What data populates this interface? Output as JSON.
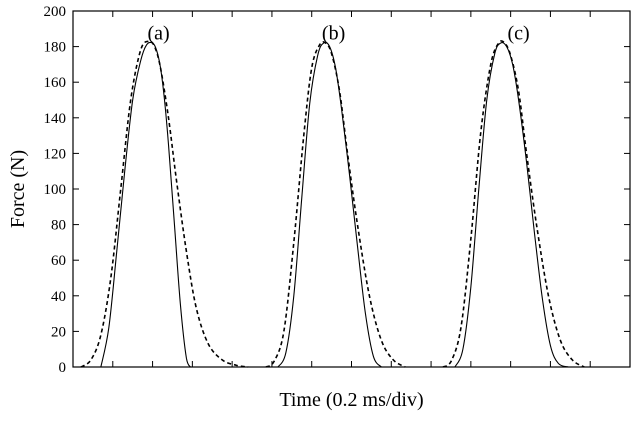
{
  "chart_data": {
    "type": "line",
    "title": "",
    "xlabel": "Time (0.2 ms/div)",
    "ylabel": "Force (N)",
    "ylim": [
      0,
      200
    ],
    "yticks": [
      0,
      20,
      40,
      60,
      80,
      100,
      120,
      140,
      160,
      180,
      200
    ],
    "xlim": [
      0,
      14
    ],
    "x_divisions": 14,
    "x_tick_labels": false,
    "grid": false,
    "legend": "none",
    "panel_labels": [
      {
        "text": "(a)",
        "x": 2.15,
        "y": 188
      },
      {
        "text": "(b)",
        "x": 6.55,
        "y": 188
      },
      {
        "text": "(c)",
        "x": 11.2,
        "y": 188
      }
    ],
    "series": [
      {
        "style": "solid",
        "x": [
          0.7,
          0.9,
          1.1,
          1.3,
          1.5,
          1.7,
          1.85,
          2.0,
          2.1,
          2.2,
          2.3,
          2.4,
          2.55,
          2.7,
          2.85,
          2.95
        ],
        "y": [
          0,
          22,
          65,
          110,
          150,
          172,
          181,
          182,
          178,
          168,
          150,
          125,
          80,
          35,
          5,
          0
        ]
      },
      {
        "style": "dashed",
        "x": [
          0.2,
          0.45,
          0.7,
          0.95,
          1.2,
          1.45,
          1.7,
          1.9,
          2.05,
          2.2,
          2.4,
          2.6,
          2.85,
          3.1,
          3.4,
          3.75,
          4.1,
          4.4
        ],
        "y": [
          0,
          4,
          18,
          50,
          100,
          150,
          178,
          183,
          180,
          168,
          140,
          105,
          65,
          33,
          13,
          4,
          1,
          0
        ]
      },
      {
        "style": "solid",
        "x": [
          5.15,
          5.35,
          5.55,
          5.75,
          5.95,
          6.15,
          6.3,
          6.45,
          6.6,
          6.75,
          6.95,
          7.15,
          7.35,
          7.55,
          7.75
        ],
        "y": [
          0,
          8,
          40,
          95,
          148,
          175,
          182,
          180,
          168,
          145,
          108,
          68,
          30,
          6,
          0
        ]
      },
      {
        "style": "dashed",
        "x": [
          4.85,
          5.05,
          5.3,
          5.55,
          5.8,
          6.0,
          6.2,
          6.35,
          6.5,
          6.7,
          6.9,
          7.15,
          7.45,
          7.75,
          8.05,
          8.35
        ],
        "y": [
          0,
          3,
          20,
          70,
          130,
          168,
          181,
          182,
          176,
          155,
          120,
          80,
          40,
          15,
          4,
          0
        ]
      },
      {
        "style": "solid",
        "x": [
          9.6,
          9.8,
          10.0,
          10.2,
          10.4,
          10.6,
          10.75,
          10.9,
          11.05,
          11.2,
          11.4,
          11.6,
          11.8,
          12.0,
          12.2,
          12.45
        ],
        "y": [
          0,
          10,
          45,
          100,
          150,
          176,
          182,
          180,
          170,
          150,
          115,
          75,
          38,
          12,
          2,
          0
        ]
      },
      {
        "style": "dashed",
        "x": [
          9.3,
          9.5,
          9.75,
          10.0,
          10.25,
          10.5,
          10.7,
          10.85,
          11.0,
          11.2,
          11.4,
          11.65,
          11.95,
          12.25,
          12.55,
          12.85
        ],
        "y": [
          0,
          3,
          22,
          72,
          132,
          170,
          182,
          182,
          175,
          155,
          120,
          80,
          40,
          15,
          4,
          0
        ]
      }
    ]
  }
}
